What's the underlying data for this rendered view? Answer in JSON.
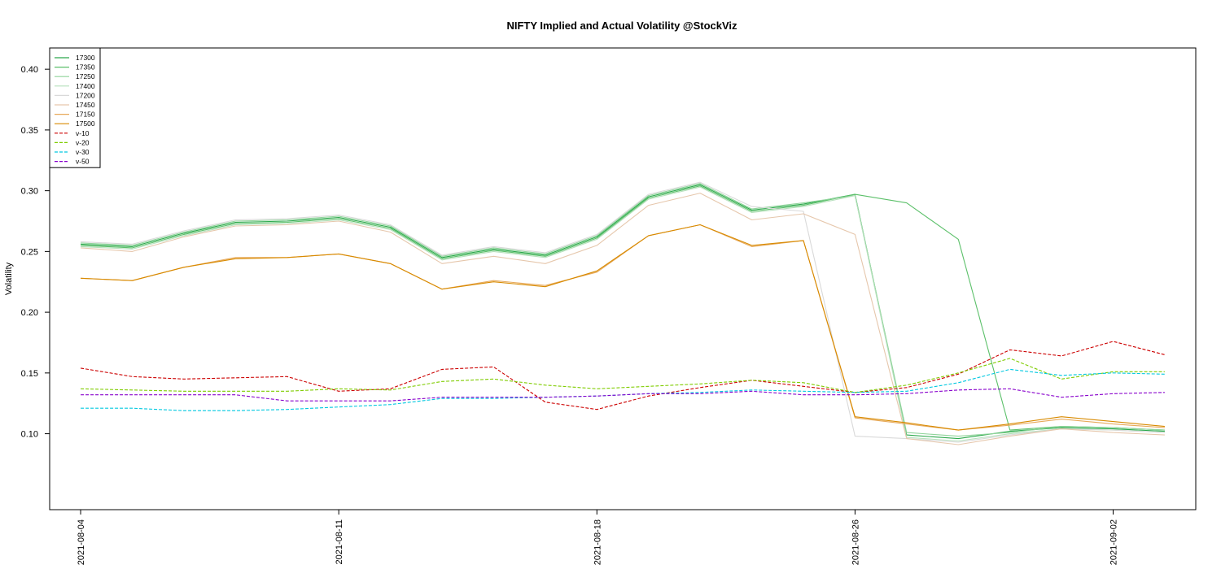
{
  "chart_data": {
    "type": "line",
    "title": "NIFTY Implied and Actual Volatility @StockViz",
    "ylabel": "Volatility",
    "xlabel": "",
    "ylim": [
      0.0375,
      0.4175
    ],
    "yticks": [
      0.1,
      0.15,
      0.2,
      0.25,
      0.3,
      0.35,
      0.4
    ],
    "ytick_labels": [
      "0.10",
      "0.15",
      "0.20",
      "0.25",
      "0.30",
      "0.35",
      "0.40"
    ],
    "xlim": [
      -0.6,
      21.6
    ],
    "xticks": [
      {
        "index": 0,
        "label": "2021-08-04"
      },
      {
        "index": 5,
        "label": "2021-08-11"
      },
      {
        "index": 10,
        "label": "2021-08-18"
      },
      {
        "index": 15,
        "label": "2021-08-26"
      },
      {
        "index": 20,
        "label": "2021-09-02"
      }
    ],
    "grid": false,
    "legend_position": "top-left",
    "series": [
      {
        "name": "17300",
        "color": "#2aa84a",
        "dash": "solid",
        "values": [
          0.256,
          0.254,
          0.265,
          0.274,
          0.275,
          0.278,
          0.27,
          0.245,
          0.252,
          0.247,
          0.262,
          0.295,
          0.305,
          0.284,
          0.289,
          0.297,
          0.099,
          0.096,
          0.102,
          0.105,
          0.104,
          0.102
        ]
      },
      {
        "name": "17350",
        "color": "#5cc06a",
        "dash": "solid",
        "values": [
          0.255,
          0.253,
          0.264,
          0.273,
          0.274,
          0.277,
          0.269,
          0.244,
          0.251,
          0.246,
          0.261,
          0.294,
          0.304,
          0.283,
          0.288,
          0.297,
          0.29,
          0.26,
          0.103,
          0.106,
          0.105,
          0.103
        ]
      },
      {
        "name": "17250",
        "color": "#8fd49a",
        "dash": "solid",
        "values": [
          0.257,
          0.255,
          0.266,
          0.275,
          0.276,
          0.279,
          0.271,
          0.246,
          0.253,
          0.248,
          0.263,
          0.296,
          0.306,
          0.285,
          0.29,
          0.296,
          0.101,
          0.098,
          0.101,
          0.106,
          0.105,
          0.103
        ]
      },
      {
        "name": "17400",
        "color": "#b6e0bc",
        "dash": "solid",
        "values": [
          0.254,
          0.252,
          0.263,
          0.272,
          0.273,
          0.276,
          0.268,
          0.243,
          0.25,
          0.245,
          0.26,
          0.293,
          0.303,
          0.282,
          0.287,
          0.296,
          0.097,
          0.094,
          0.1,
          0.104,
          0.103,
          0.101
        ]
      },
      {
        "name": "17200",
        "color": "#d9d9d9",
        "dash": "solid",
        "values": [
          0.258,
          0.256,
          0.267,
          0.276,
          0.277,
          0.28,
          0.272,
          0.247,
          0.254,
          0.249,
          0.264,
          0.297,
          0.307,
          0.287,
          0.283,
          0.098,
          0.096,
          0.093,
          0.099,
          0.104,
          0.103,
          0.101
        ]
      },
      {
        "name": "17450",
        "color": "#e6c7ac",
        "dash": "solid",
        "values": [
          0.253,
          0.25,
          0.262,
          0.271,
          0.272,
          0.275,
          0.266,
          0.24,
          0.246,
          0.24,
          0.255,
          0.288,
          0.298,
          0.276,
          0.281,
          0.264,
          0.096,
          0.091,
          0.098,
          0.104,
          0.101,
          0.099
        ]
      },
      {
        "name": "17150",
        "color": "#e7a95a",
        "dash": "solid",
        "values": [
          0.228,
          0.226,
          0.237,
          0.245,
          0.245,
          0.248,
          0.24,
          0.219,
          0.226,
          0.222,
          0.233,
          0.263,
          0.272,
          0.254,
          0.259,
          0.113,
          0.108,
          0.103,
          0.107,
          0.112,
          0.108,
          0.105
        ]
      },
      {
        "name": "17500",
        "color": "#d88a00",
        "dash": "solid",
        "values": [
          0.228,
          0.226,
          0.237,
          0.244,
          0.245,
          0.248,
          0.24,
          0.219,
          0.225,
          0.221,
          0.234,
          0.263,
          0.272,
          0.255,
          0.259,
          0.114,
          0.109,
          0.103,
          0.108,
          0.114,
          0.11,
          0.106
        ]
      },
      {
        "name": "v-10",
        "color": "#cc0000",
        "dash": "dashed",
        "values": [
          0.154,
          0.147,
          0.145,
          0.146,
          0.147,
          0.135,
          0.137,
          0.153,
          0.155,
          0.126,
          0.12,
          0.131,
          0.138,
          0.144,
          0.139,
          0.134,
          0.138,
          0.149,
          0.169,
          0.164,
          0.176,
          0.165
        ]
      },
      {
        "name": "v-20",
        "color": "#7fcc00",
        "dash": "dashed",
        "values": [
          0.137,
          0.136,
          0.135,
          0.135,
          0.135,
          0.137,
          0.136,
          0.143,
          0.145,
          0.14,
          0.137,
          0.139,
          0.141,
          0.144,
          0.142,
          0.134,
          0.14,
          0.15,
          0.162,
          0.145,
          0.151,
          0.151
        ]
      },
      {
        "name": "v-30",
        "color": "#00c8e0",
        "dash": "dashed",
        "values": [
          0.121,
          0.121,
          0.119,
          0.119,
          0.12,
          0.122,
          0.124,
          0.129,
          0.129,
          0.13,
          0.131,
          0.133,
          0.134,
          0.136,
          0.135,
          0.134,
          0.135,
          0.142,
          0.153,
          0.148,
          0.15,
          0.149
        ]
      },
      {
        "name": "v-50",
        "color": "#8800cc",
        "dash": "dashed",
        "values": [
          0.132,
          0.132,
          0.132,
          0.132,
          0.127,
          0.127,
          0.127,
          0.13,
          0.13,
          0.13,
          0.131,
          0.133,
          0.133,
          0.135,
          0.132,
          0.132,
          0.133,
          0.136,
          0.137,
          0.13,
          0.133,
          0.134
        ]
      }
    ]
  }
}
